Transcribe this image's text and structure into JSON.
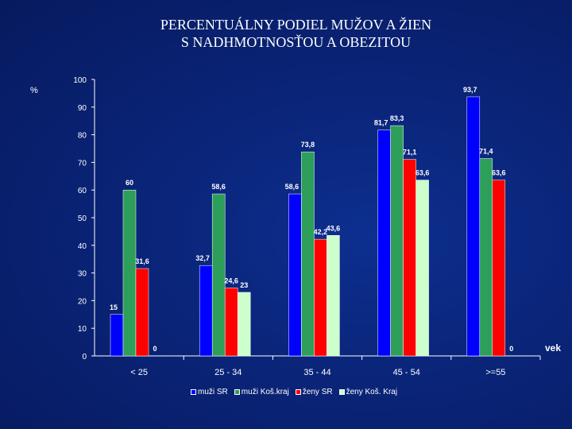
{
  "title": {
    "line1": "PERCENTUÁLNY PODIEL MUŽOV A ŽIEN",
    "line2": "S NADHMOTNOSŤOU A OBEZITOU"
  },
  "chart_data": {
    "type": "bar",
    "title": "PERCENTUÁLNY PODIEL MUŽOV A ŽIEN S NADHMOTNOSŤOU A OBEZITOU",
    "ylabel": "%",
    "xlabel": "vek",
    "ylim": [
      0,
      100
    ],
    "yticks": [
      "0",
      "10",
      "20",
      "30",
      "40",
      "50",
      "60",
      "70",
      "80",
      "90",
      "100"
    ],
    "categories": [
      "< 25",
      "25 - 34",
      "35 - 44",
      "45 - 54",
      ">=55"
    ],
    "grid": false,
    "legend_position": "bottom",
    "series": [
      {
        "name": "muži SR",
        "color": "#0000ff",
        "values": [
          15,
          32.7,
          58.6,
          81.7,
          93.7
        ],
        "labels": [
          "15",
          "32,7",
          "58,6",
          "81,7",
          "93,7"
        ]
      },
      {
        "name": "muži Koš.kraj",
        "color": "#2e9e5b",
        "values": [
          60,
          58.6,
          73.8,
          83.3,
          71.4
        ],
        "labels": [
          "60",
          "58,6",
          "73,8",
          "83,3",
          "71,4"
        ]
      },
      {
        "name": "ženy SR",
        "color": "#ff0000",
        "values": [
          31.6,
          24.6,
          42.2,
          71.1,
          63.6
        ],
        "labels": [
          "31,6",
          "24,6",
          "42,2",
          "71,1",
          "63,6"
        ]
      },
      {
        "name": "ženy Koš. Kraj",
        "color": "#ccffcc",
        "values": [
          0,
          23,
          43.6,
          63.6,
          0
        ],
        "labels": [
          "0",
          "23",
          "43,6",
          "63,6",
          "0"
        ]
      }
    ]
  }
}
